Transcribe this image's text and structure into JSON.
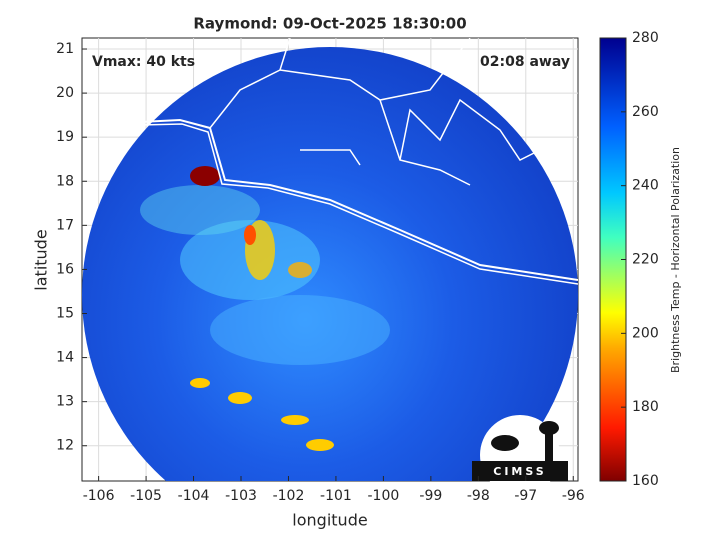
{
  "chart_data": {
    "type": "image",
    "title": "Raymond: 09-Oct-2025 18:30:00",
    "annotations": [
      "Vmax: 40 kts",
      "02:08 away"
    ],
    "xlabel": "longitude",
    "ylabel": "latitude",
    "xlim": [
      -106.35,
      -95.9
    ],
    "xticks": [
      -106,
      -105,
      -104,
      -103,
      -102,
      -101,
      -100,
      -99,
      -98,
      -97,
      -96
    ],
    "ylim": [
      11.2,
      21.25
    ],
    "yticks": [
      12,
      13,
      14,
      15,
      16,
      17,
      18,
      19,
      20,
      21
    ],
    "grid": true,
    "colorbar": {
      "label": "Brightness Temp - Horizontal Polarization",
      "lim": [
        160,
        280
      ],
      "ticks": [
        160,
        180,
        200,
        220,
        240,
        260,
        280
      ]
    },
    "logo": "CIMSS"
  }
}
